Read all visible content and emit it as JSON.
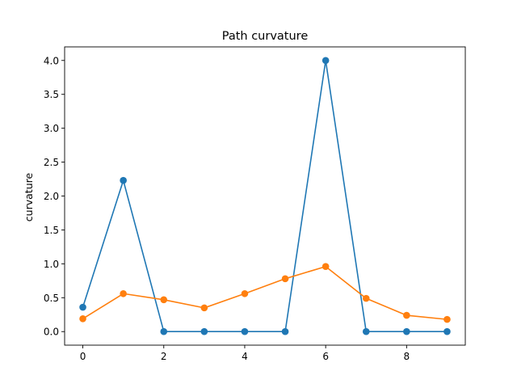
{
  "chart_data": {
    "type": "line",
    "title": "Path curvature",
    "xlabel": "",
    "ylabel": "curvature",
    "x": [
      0,
      1,
      2,
      3,
      4,
      5,
      6,
      7,
      8,
      9
    ],
    "xlim": [
      -0.45,
      9.45
    ],
    "ylim": [
      -0.2,
      4.2
    ],
    "xticks": [
      0,
      2,
      4,
      6,
      8
    ],
    "yticks": [
      0.0,
      0.5,
      1.0,
      1.5,
      2.0,
      2.5,
      3.0,
      3.5,
      4.0
    ],
    "ytick_labels": [
      "0.0",
      "0.5",
      "1.0",
      "1.5",
      "2.0",
      "2.5",
      "3.0",
      "3.5",
      "4.0"
    ],
    "grid": false,
    "series": [
      {
        "color": "#1f77b4",
        "values": [
          0.36,
          2.23,
          0.0,
          0.0,
          0.0,
          0.0,
          4.0,
          0.0,
          0.0,
          0.0
        ]
      },
      {
        "color": "#ff7f0e",
        "values": [
          0.19,
          0.56,
          0.47,
          0.35,
          0.56,
          0.78,
          0.96,
          0.49,
          0.24,
          0.18
        ]
      }
    ]
  }
}
